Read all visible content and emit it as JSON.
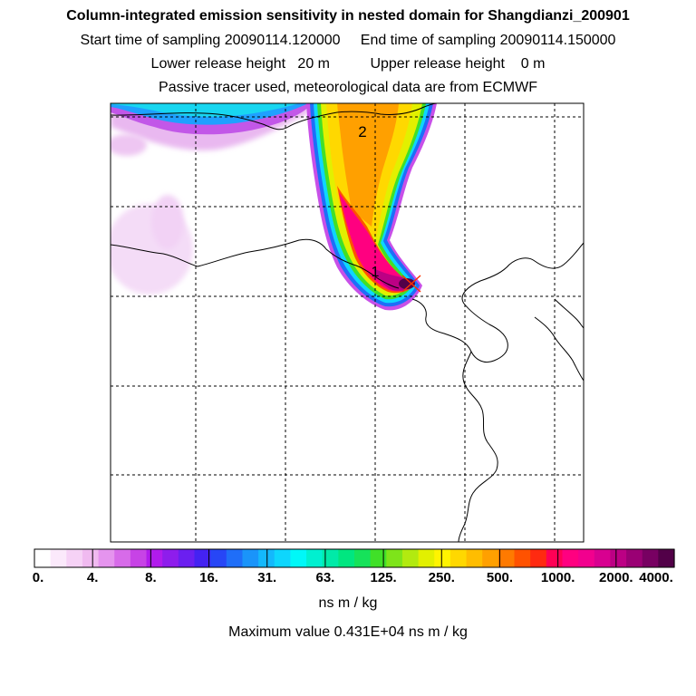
{
  "header": {
    "title": "Column-integrated emission sensitivity in nested domain for Shangdianzi_200901",
    "sampling_line": "Start time of sampling 20090114.120000     End time of sampling 20090114.150000",
    "release_line": "Lower release height   20 m          Upper release height    0 m",
    "tracer_line": "Passive tracer used, meteorological data are from ECMWF"
  },
  "map": {
    "labels": {
      "release_point": "1",
      "secondary_point": "2"
    },
    "colors": {
      "release_marker": "#ff3300"
    }
  },
  "colorbar": {
    "tick_labels": [
      "0.",
      "4.",
      "8.",
      "16.",
      "31.",
      "63.",
      "125.",
      "250.",
      "500.",
      "1000.",
      "2000.",
      "4000."
    ],
    "colors": [
      "#ffffff",
      "#fbe9fb",
      "#f6d2f6",
      "#f0baf0",
      "#e594ee",
      "#d76be9",
      "#c743e6",
      "#b11bec",
      "#8e1dec",
      "#6b1ff0",
      "#4422f2",
      "#2746f6",
      "#1f6ef8",
      "#1a94fa",
      "#14b8fc",
      "#0ed6fd",
      "#00f8f8",
      "#00f0d0",
      "#00eaa8",
      "#00e680",
      "#16e25a",
      "#40e028",
      "#7ee41a",
      "#b2ea10",
      "#e2f000",
      "#fff400",
      "#ffd800",
      "#ffbd00",
      "#ffa000",
      "#ff7a00",
      "#ff5200",
      "#ff2a10",
      "#ff0055",
      "#ff0080",
      "#f2008e",
      "#d80090",
      "#bc0084",
      "#9a0074",
      "#780062",
      "#520048"
    ],
    "unit": "ns m / kg",
    "max_value": "Maximum value  0.431E+04 ns m / kg"
  }
}
